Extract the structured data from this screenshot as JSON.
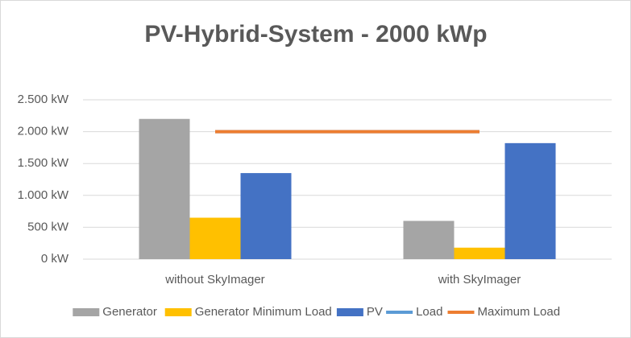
{
  "chart_data": {
    "type": "bar",
    "title": "PV-Hybrid-System - 2000 kWp",
    "categories": [
      "without SkyImager",
      "with SkyImager"
    ],
    "series": [
      {
        "name": "Generator",
        "color": "#a5a5a5",
        "type": "bar",
        "values": [
          2200,
          600
        ]
      },
      {
        "name": "Generator Minimum Load",
        "color": "#ffc000",
        "type": "bar",
        "values": [
          650,
          180
        ]
      },
      {
        "name": "PV",
        "color": "#4472c4",
        "type": "bar",
        "values": [
          1350,
          1820
        ]
      },
      {
        "name": "Load",
        "color": "#5b9bd5",
        "type": "line",
        "values": [
          2000,
          2000
        ]
      },
      {
        "name": "Maximum Load",
        "color": "#ed7d31",
        "type": "line",
        "values": [
          2000,
          2000
        ]
      }
    ],
    "ylim": [
      0,
      2500
    ],
    "yticks": [
      {
        "value": 0,
        "label": "0 kW"
      },
      {
        "value": 500,
        "label": "500 kW"
      },
      {
        "value": 1000,
        "label": "1.000 kW"
      },
      {
        "value": 1500,
        "label": "1.500 kW"
      },
      {
        "value": 2000,
        "label": "2.000 kW"
      },
      {
        "value": 2500,
        "label": "2.500 kW"
      }
    ],
    "grid": true,
    "legend": "bottom"
  }
}
